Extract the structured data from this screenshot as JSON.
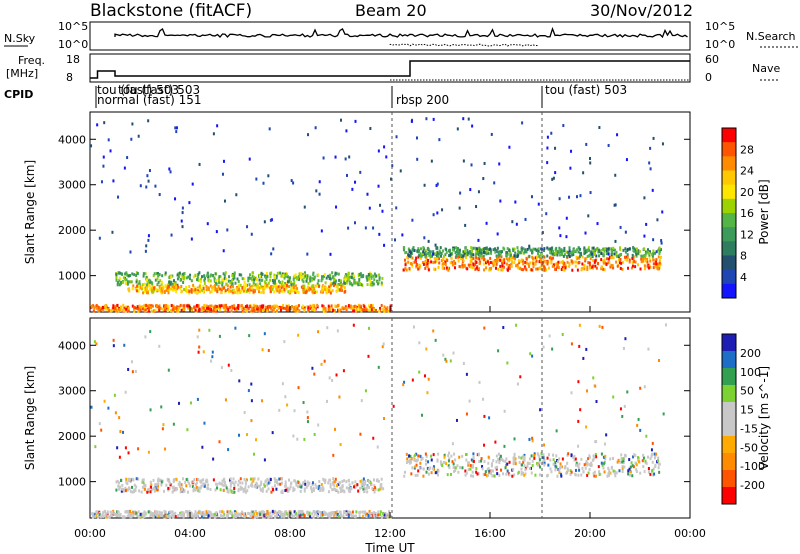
{
  "header": {
    "station": "Blackstone (fitACF)",
    "beam": "Beam 20",
    "date": "30/Nov/2012"
  },
  "panels": {
    "nsky": {
      "label": "N.Sky",
      "ticks": [
        "10^5",
        "10^0"
      ],
      "right_label": "N.Search",
      "right_ticks": [
        "10^5",
        "10^0"
      ]
    },
    "freq": {
      "label_line1": "Freq.",
      "label_line2": "[MHz]",
      "ticks": [
        "18",
        "8"
      ],
      "right_label": "Nave",
      "right_ticks": [
        "60",
        "0"
      ]
    },
    "cpid": {
      "label": "CPID",
      "entries": [
        "tou (fast) 503",
        "normal (fast) 151",
        "tou (fast) 503",
        "rbsp 200",
        "tou (fast) 503"
      ]
    }
  },
  "chart_data": [
    {
      "type": "heatmap",
      "title": "",
      "xlabel": "",
      "ylabel": "Slant Range [km]",
      "x_ticks": [
        "00:00",
        "04:00",
        "08:00",
        "12:00",
        "16:00",
        "20:00",
        "00:00"
      ],
      "y_ticks": [
        "1000",
        "2000",
        "3000",
        "4000"
      ],
      "ylim": [
        200,
        4600
      ],
      "colorbar": {
        "label": "Power [dB]",
        "ticks": [
          "28",
          "24",
          "20",
          "16",
          "12",
          "8",
          "4"
        ],
        "colors": [
          "#ff0000",
          "#ff5500",
          "#ff8c00",
          "#ffc800",
          "#ffe600",
          "#9bd200",
          "#55b446",
          "#3c9a5a",
          "#2e7d5f",
          "#23506e",
          "#1e46b4",
          "#1414ff"
        ]
      },
      "regions": [
        {
          "t0": 1.0,
          "t1": 11.7,
          "r0": 820,
          "r1": 1100,
          "level": 0.45
        },
        {
          "t0": 1.5,
          "t1": 10.2,
          "r0": 650,
          "r1": 820,
          "level": 0.75
        },
        {
          "t0": 0.0,
          "t1": 12.0,
          "r0": 250,
          "r1": 380,
          "level": 0.85
        },
        {
          "t0": 12.5,
          "t1": 22.8,
          "r0": 1150,
          "r1": 1450,
          "level": 0.85
        },
        {
          "t0": 12.5,
          "t1": 22.8,
          "r0": 1450,
          "r1": 1650,
          "level": 0.35
        }
      ]
    },
    {
      "type": "heatmap",
      "title": "",
      "xlabel": "Time UT",
      "ylabel": "Slant Range [km]",
      "x_ticks": [
        "00:00",
        "04:00",
        "08:00",
        "12:00",
        "16:00",
        "20:00",
        "00:00"
      ],
      "y_ticks": [
        "1000",
        "2000",
        "3000",
        "4000"
      ],
      "ylim": [
        200,
        4600
      ],
      "colorbar": {
        "label": "Velocity [m s^-1]",
        "ticks": [
          "200",
          "100",
          "50",
          "15",
          "-15",
          "-50",
          "-100",
          "-200"
        ],
        "colors": [
          "#1e1eb4",
          "#1e6ec8",
          "#32a050",
          "#7bd232",
          "#c8c8c8",
          "#c8c8c8",
          "#ffaa00",
          "#ff8c00",
          "#ff5500",
          "#ff0000"
        ]
      },
      "regions": [
        {
          "t0": 1.0,
          "t1": 11.7,
          "r0": 800,
          "r1": 1100,
          "level": 0.7
        },
        {
          "t0": 0.0,
          "t1": 12.0,
          "r0": 250,
          "r1": 380,
          "level": 0.7
        },
        {
          "t0": 12.5,
          "t1": 22.8,
          "r0": 1150,
          "r1": 1650,
          "level": 0.5
        }
      ]
    }
  ]
}
